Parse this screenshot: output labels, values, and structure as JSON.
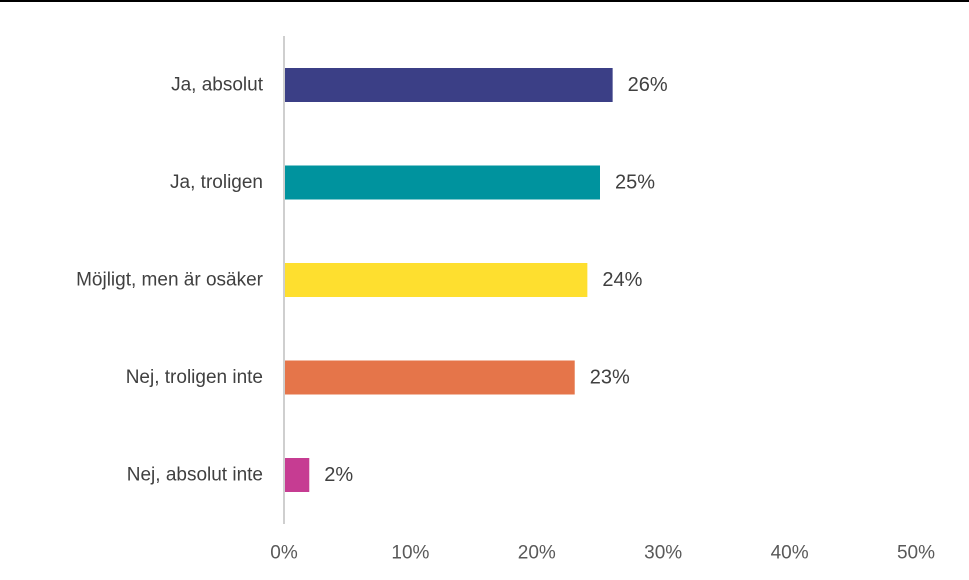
{
  "chart_data": {
    "type": "bar",
    "orientation": "horizontal",
    "categories": [
      "Ja, absolut",
      "Ja, troligen",
      "Möjligt, men är osäker",
      "Nej, troligen inte",
      "Nej, absolut inte"
    ],
    "values": [
      26,
      25,
      24,
      23,
      2
    ],
    "value_labels": [
      "26%",
      "25%",
      "24%",
      "23%",
      "2%"
    ],
    "colors": [
      "#3b3f86",
      "#00939e",
      "#fedf2f",
      "#e5754a",
      "#c63c92"
    ],
    "xlim": [
      0,
      50
    ],
    "x_ticks": [
      0,
      10,
      20,
      30,
      40,
      50
    ],
    "x_tick_labels": [
      "0%",
      "10%",
      "20%",
      "30%",
      "40%",
      "50%"
    ],
    "grid": false,
    "legend": "none"
  }
}
